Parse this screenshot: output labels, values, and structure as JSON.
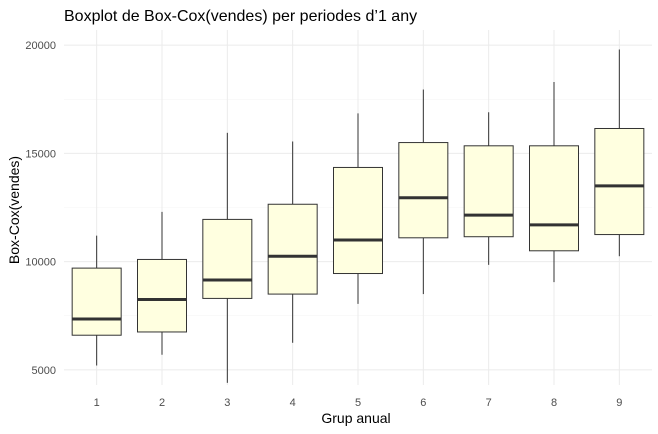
{
  "chart_data": {
    "type": "boxplot",
    "title": "Boxplot de Box-Cox(vendes) per periodes d’1 any",
    "xlabel": "Grup anual",
    "ylabel": "Box-Cox(vendes)",
    "ylim": [
      4300,
      20700
    ],
    "yticks": [
      5000,
      10000,
      15000,
      20000
    ],
    "grid": true,
    "colors": {
      "box_fill": "#ffffe0",
      "box_stroke": "#333333"
    },
    "categories": [
      "1",
      "2",
      "3",
      "4",
      "5",
      "6",
      "7",
      "8",
      "9"
    ],
    "boxes": [
      {
        "min": 5200,
        "q1": 6600,
        "median": 7350,
        "q3": 9700,
        "max": 11200
      },
      {
        "min": 5700,
        "q1": 6750,
        "median": 8250,
        "q3": 10100,
        "max": 12300
      },
      {
        "min": 4400,
        "q1": 8300,
        "median": 9150,
        "q3": 11950,
        "max": 15950
      },
      {
        "min": 6250,
        "q1": 8500,
        "median": 10250,
        "q3": 12650,
        "max": 15550
      },
      {
        "min": 8050,
        "q1": 9450,
        "median": 11000,
        "q3": 14350,
        "max": 16850
      },
      {
        "min": 8500,
        "q1": 11100,
        "median": 12950,
        "q3": 15500,
        "max": 17950
      },
      {
        "min": 9850,
        "q1": 11150,
        "median": 12150,
        "q3": 15350,
        "max": 16900
      },
      {
        "min": 9050,
        "q1": 10500,
        "median": 11700,
        "q3": 15350,
        "max": 18300
      },
      {
        "min": 10250,
        "q1": 11250,
        "median": 13500,
        "q3": 16150,
        "max": 19800
      }
    ]
  }
}
